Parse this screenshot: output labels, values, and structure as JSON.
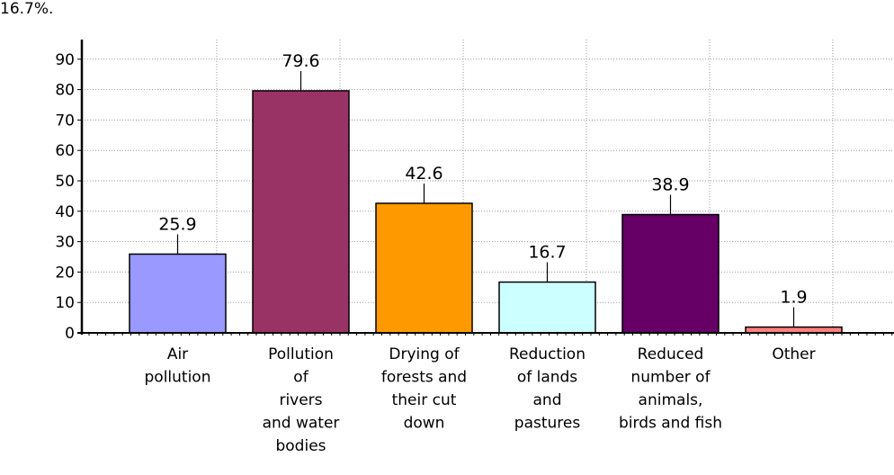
{
  "top_text": "16.7%.",
  "chart_data": {
    "type": "bar",
    "title": "",
    "xlabel": "",
    "ylabel": "",
    "ylim": [
      0,
      90
    ],
    "yticks": [
      0,
      10,
      20,
      30,
      40,
      50,
      60,
      70,
      80,
      90
    ],
    "grid": true,
    "categories": [
      [
        "Air",
        "pollution"
      ],
      [
        "Pollution",
        "of",
        "rivers",
        "and water",
        "bodies"
      ],
      [
        "Drying of",
        "forests and",
        "their cut",
        "down"
      ],
      [
        "Reduction",
        "of lands",
        "and",
        "pastures"
      ],
      [
        "Reduced",
        "number of",
        "animals,",
        "birds and fish"
      ],
      [
        "Other"
      ]
    ],
    "values": [
      25.9,
      79.6,
      42.6,
      16.7,
      38.9,
      1.9
    ],
    "value_labels": [
      "25.9",
      "79.6",
      "42.6",
      "16.7",
      "38.9",
      "1.9"
    ],
    "colors": [
      "#9999ff",
      "#993366",
      "#ff9900",
      "#ccffff",
      "#660066",
      "#ff8080"
    ]
  }
}
